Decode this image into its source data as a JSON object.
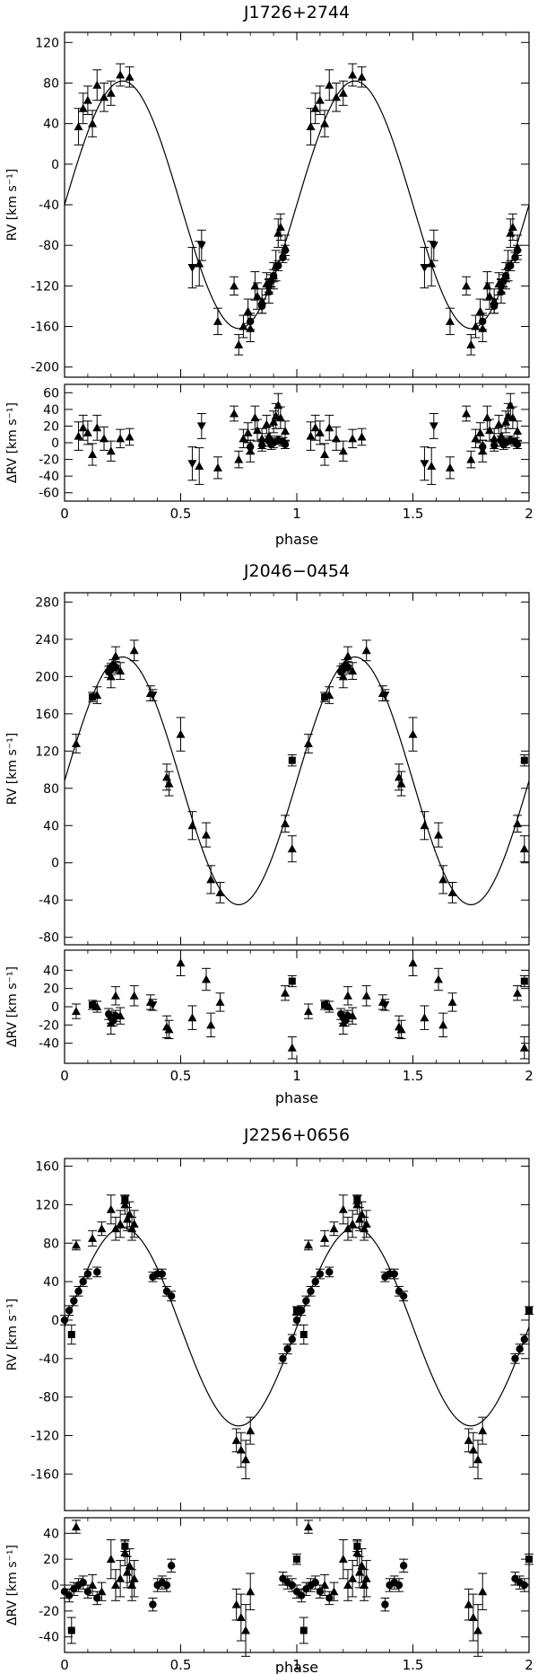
{
  "chart_data": [
    {
      "type": "scatter",
      "title": "J1726+2744",
      "xlabel": "phase",
      "ylabel": "RV [km s⁻¹]",
      "ylabel_resid": "ΔRV [km s⁻¹]",
      "xlim": [
        0,
        2
      ],
      "ylim": [
        -210,
        130
      ],
      "ylim_resid": [
        -70,
        70
      ],
      "x_ticks": [
        "0",
        "0.5",
        "1",
        "1.5",
        "2"
      ],
      "y_ticks": [
        "120",
        "80",
        "40",
        "0",
        "-40",
        "-80",
        "-120",
        "-160",
        "-200"
      ],
      "y_ticks_resid": [
        "60",
        "40",
        "20",
        "0",
        "-20",
        "-40",
        "-60"
      ],
      "fit_curve": {
        "model": "sine",
        "gamma": -40,
        "amplitude": 122,
        "phase_of_max": 0.25
      },
      "series": [
        {
          "name": "triangles",
          "marker": "triangle-up",
          "x": [
            0.06,
            0.08,
            0.1,
            0.12,
            0.14,
            0.17,
            0.2,
            0.24,
            0.28,
            0.58,
            0.66,
            0.73,
            0.75,
            0.77,
            0.79,
            0.8,
            0.82,
            0.83,
            0.85,
            0.87,
            0.88,
            0.9,
            0.91,
            0.92,
            0.93,
            0.95
          ],
          "y": [
            37,
            55,
            63,
            40,
            78,
            66,
            70,
            88,
            86,
            -98,
            -155,
            -120,
            -178,
            -160,
            -145,
            -162,
            -120,
            -130,
            -135,
            -118,
            -125,
            -110,
            -100,
            -68,
            -62,
            -82
          ],
          "err": [
            18,
            15,
            14,
            13,
            15,
            14,
            12,
            11,
            10,
            22,
            13,
            9,
            10,
            11,
            12,
            13,
            14,
            13,
            12,
            11,
            12,
            13,
            15,
            14,
            13,
            12
          ],
          "resid": [
            8,
            18,
            12,
            -14,
            18,
            5,
            -10,
            5,
            7,
            -28,
            -30,
            35,
            -20,
            5,
            12,
            -10,
            30,
            15,
            5,
            22,
            8,
            25,
            32,
            45,
            30,
            14
          ],
          "resid_err": [
            17,
            15,
            14,
            13,
            15,
            14,
            12,
            11,
            10,
            22,
            13,
            9,
            10,
            11,
            12,
            13,
            14,
            13,
            12,
            11,
            12,
            13,
            15,
            14,
            13,
            12
          ]
        },
        {
          "name": "inverted triangles",
          "marker": "triangle-down",
          "x": [
            0.55,
            0.59
          ],
          "y": [
            -102,
            -80
          ],
          "err": [
            20,
            15
          ],
          "resid": [
            -25,
            20
          ],
          "resid_err": [
            20,
            15
          ]
        },
        {
          "name": "filled circles",
          "marker": "circle",
          "x": [
            0.8,
            0.85,
            0.88,
            0.89,
            0.9,
            0.92,
            0.94,
            0.95
          ],
          "y": [
            -155,
            -140,
            -120,
            -115,
            -110,
            -100,
            -92,
            -85
          ],
          "err": [
            8,
            7,
            6,
            6,
            6,
            5,
            5,
            5
          ],
          "resid": [
            -5,
            -3,
            2,
            -2,
            0,
            3,
            1,
            -2
          ],
          "resid_err": [
            8,
            7,
            6,
            6,
            6,
            5,
            5,
            5
          ]
        }
      ]
    },
    {
      "type": "scatter",
      "title": "J2046−0454",
      "xlabel": "phase",
      "ylabel": "RV [km s⁻¹]",
      "ylabel_resid": "ΔRV [km s⁻¹]",
      "xlim": [
        0,
        2
      ],
      "ylim": [
        -88,
        290
      ],
      "ylim_resid": [
        -62,
        62
      ],
      "x_ticks": [
        "0",
        "0.5",
        "1",
        "1.5",
        "2"
      ],
      "y_ticks": [
        "280",
        "240",
        "200",
        "160",
        "120",
        "80",
        "40",
        "0",
        "-40",
        "-80"
      ],
      "y_ticks_resid": [
        "40",
        "20",
        "0",
        "-20",
        "-40"
      ],
      "fit_curve": {
        "model": "sine",
        "gamma": 88,
        "amplitude": 133,
        "phase_of_max": 0.25
      },
      "series": [
        {
          "name": "triangles",
          "marker": "triangle-up",
          "x": [
            0.05,
            0.14,
            0.2,
            0.22,
            0.24,
            0.3,
            0.37,
            0.44,
            0.45,
            0.5,
            0.55,
            0.61,
            0.63,
            0.67,
            0.95,
            0.98
          ],
          "y": [
            128,
            180,
            200,
            222,
            206,
            228,
            182,
            92,
            85,
            138,
            40,
            30,
            -18,
            -32,
            42,
            15
          ],
          "err": [
            10,
            9,
            12,
            10,
            9,
            11,
            8,
            14,
            13,
            18,
            15,
            13,
            15,
            11,
            9,
            14
          ],
          "resid": [
            -5,
            0,
            -18,
            12,
            -10,
            12,
            5,
            -22,
            -25,
            48,
            -12,
            30,
            -20,
            5,
            15,
            -45
          ],
          "resid_err": [
            8,
            6,
            12,
            10,
            9,
            11,
            8,
            12,
            10,
            14,
            13,
            12,
            13,
            10,
            8,
            12
          ]
        },
        {
          "name": "squares",
          "marker": "square",
          "x": [
            0.12,
            0.98
          ],
          "y": [
            178,
            110
          ],
          "err": [
            5,
            6
          ],
          "resid": [
            2,
            28
          ],
          "resid_err": [
            5,
            6
          ]
        },
        {
          "name": "filled circles",
          "marker": "circle",
          "x": [
            0.19,
            0.2,
            0.21,
            0.22
          ],
          "y": [
            205,
            208,
            212,
            210
          ],
          "err": [
            6,
            6,
            6,
            6
          ],
          "resid": [
            -8,
            -12,
            -15,
            -10
          ],
          "resid_err": [
            6,
            6,
            6,
            6
          ]
        },
        {
          "name": "inverted triangles",
          "marker": "triangle-down",
          "x": [
            0.38
          ],
          "y": [
            180
          ],
          "err": [
            6
          ],
          "resid": [
            2
          ],
          "resid_err": [
            6
          ]
        }
      ]
    },
    {
      "type": "scatter",
      "title": "J2256+0656",
      "xlabel": "phase",
      "ylabel": "RV [km s⁻¹]",
      "ylabel_resid": "ΔRV [km s⁻¹]",
      "xlim": [
        0,
        2
      ],
      "ylim": [
        -198,
        168
      ],
      "ylim_resid": [
        -52,
        52
      ],
      "x_ticks": [
        "0",
        "0.5",
        "1",
        "1.5",
        "2"
      ],
      "y_ticks": [
        "160",
        "120",
        "80",
        "40",
        "0",
        "-40",
        "-80",
        "-120",
        "-160"
      ],
      "y_ticks_resid": [
        "40",
        "20",
        "0",
        "-20",
        "-40"
      ],
      "fit_curve": {
        "model": "sine",
        "gamma": -7,
        "amplitude": 103,
        "phase_of_max": 0.25
      },
      "series": [
        {
          "name": "triangles",
          "marker": "triangle-up",
          "x": [
            0.05,
            0.12,
            0.16,
            0.2,
            0.22,
            0.24,
            0.26,
            0.27,
            0.28,
            0.29,
            0.3,
            0.74,
            0.76,
            0.78,
            0.8
          ],
          "y": [
            78,
            85,
            95,
            115,
            95,
            100,
            120,
            105,
            110,
            95,
            100,
            -125,
            -135,
            -145,
            -115
          ],
          "err": [
            5,
            8,
            7,
            15,
            12,
            14,
            10,
            12,
            13,
            12,
            14,
            12,
            18,
            20,
            14
          ],
          "resid": [
            45,
            0,
            -5,
            20,
            0,
            5,
            25,
            10,
            15,
            0,
            5,
            -15,
            -25,
            -35,
            -5
          ],
          "resid_err": [
            5,
            8,
            7,
            15,
            12,
            14,
            10,
            12,
            13,
            12,
            14,
            12,
            18,
            20,
            14
          ]
        },
        {
          "name": "squares",
          "marker": "square",
          "x": [
            0.03,
            0.26,
            1.0
          ],
          "y": [
            -15,
            125,
            10
          ],
          "err": [
            10,
            4,
            4
          ],
          "resid": [
            -35,
            30,
            20
          ],
          "resid_err": [
            10,
            4,
            4
          ]
        },
        {
          "name": "filled circles",
          "marker": "circle",
          "x": [
            0.0,
            0.02,
            0.04,
            0.06,
            0.08,
            0.1,
            0.14,
            0.38,
            0.4,
            0.42,
            0.44,
            0.46,
            0.94,
            0.96,
            0.98
          ],
          "y": [
            0,
            10,
            20,
            30,
            40,
            48,
            50,
            45,
            48,
            48,
            30,
            25,
            -40,
            -30,
            -20
          ],
          "err": [
            5,
            5,
            5,
            5,
            5,
            5,
            5,
            5,
            5,
            5,
            5,
            5,
            5,
            5,
            5
          ],
          "resid": [
            -5,
            -8,
            -3,
            0,
            2,
            -5,
            -10,
            -15,
            0,
            2,
            0,
            15,
            5,
            2,
            0
          ],
          "resid_err": [
            5,
            5,
            5,
            5,
            5,
            5,
            5,
            5,
            5,
            5,
            5,
            5,
            5,
            5,
            5
          ]
        }
      ]
    }
  ]
}
